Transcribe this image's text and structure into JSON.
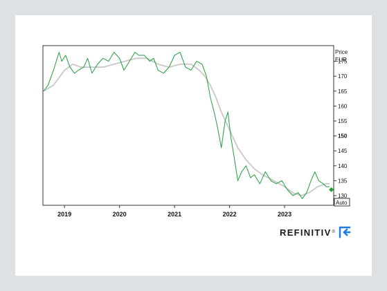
{
  "chart_data": {
    "type": "line",
    "currency_label": "Price",
    "currency_unit": "EUR",
    "auto_label": "Auto",
    "y_ticks": [
      "175",
      "170",
      "165",
      "160",
      "155",
      "150",
      "145",
      "140",
      "135",
      "130"
    ],
    "y_tick_values": [
      175,
      170,
      165,
      160,
      155,
      150,
      145,
      140,
      135,
      130
    ],
    "ylim": [
      127,
      180
    ],
    "xlim": [
      2018.62,
      2023.88
    ],
    "x_ticks": [
      {
        "label": "2019",
        "x": 2019.0
      },
      {
        "label": "2020",
        "x": 2020.0
      },
      {
        "label": "2021",
        "x": 2021.0
      },
      {
        "label": "2022",
        "x": 2022.0
      },
      {
        "label": "2023",
        "x": 2023.0
      }
    ],
    "grid": false,
    "series": [
      {
        "color": "#1e9e3c",
        "x": [
          2018.62,
          2018.7,
          2018.8,
          2018.9,
          2018.95,
          2019.02,
          2019.1,
          2019.18,
          2019.25,
          2019.35,
          2019.42,
          2019.5,
          2019.6,
          2019.7,
          2019.8,
          2019.9,
          2020.0,
          2020.08,
          2020.18,
          2020.28,
          2020.35,
          2020.45,
          2020.55,
          2020.62,
          2020.7,
          2020.8,
          2020.9,
          2021.0,
          2021.1,
          2021.2,
          2021.3,
          2021.4,
          2021.5,
          2021.58,
          2021.65,
          2021.72,
          2021.78,
          2021.85,
          2021.92,
          2021.97,
          2022.02,
          2022.1,
          2022.15,
          2022.22,
          2022.3,
          2022.38,
          2022.45,
          2022.55,
          2022.65,
          2022.75,
          2022.85,
          2022.95,
          2023.05,
          2023.15,
          2023.25,
          2023.32,
          2023.4,
          2023.48,
          2023.55,
          2023.62,
          2023.7,
          2023.76,
          2023.82
        ],
        "values": [
          165,
          167,
          172,
          178,
          175,
          177,
          173,
          171,
          172,
          173,
          176,
          171,
          174,
          176,
          175,
          178,
          176,
          172,
          175,
          178,
          177,
          177,
          175,
          176,
          172,
          171,
          173,
          177,
          178,
          173,
          172,
          175,
          174,
          170,
          163,
          158,
          153,
          146,
          155,
          158,
          150,
          141,
          135,
          138,
          140,
          136,
          137,
          134,
          138,
          135,
          134,
          135,
          132,
          130,
          131,
          129,
          131,
          135,
          138,
          135,
          134,
          133,
          133
        ]
      },
      {
        "color": "#c8c8c8",
        "x": [
          2018.62,
          2018.8,
          2019.0,
          2019.15,
          2019.3,
          2019.5,
          2019.7,
          2019.9,
          2020.1,
          2020.3,
          2020.5,
          2020.7,
          2020.9,
          2021.1,
          2021.3,
          2021.45,
          2021.55,
          2021.65,
          2021.75,
          2021.85,
          2021.95,
          2022.05,
          2022.15,
          2022.3,
          2022.45,
          2022.6,
          2022.8,
          2023.0,
          2023.15,
          2023.3,
          2023.45,
          2023.6,
          2023.75,
          2023.82
        ],
        "values": [
          165,
          167,
          172,
          174,
          173,
          173,
          173,
          174,
          175,
          176,
          176,
          174,
          173,
          174,
          174,
          172,
          170,
          167,
          163,
          158,
          154,
          150,
          146,
          142,
          139,
          137,
          135,
          133,
          131,
          130,
          131,
          133,
          134,
          134
        ]
      }
    ],
    "last_point": {
      "x": 2023.85,
      "y": 132
    }
  },
  "brand": {
    "name": "REFINITIV",
    "reg": "®"
  }
}
